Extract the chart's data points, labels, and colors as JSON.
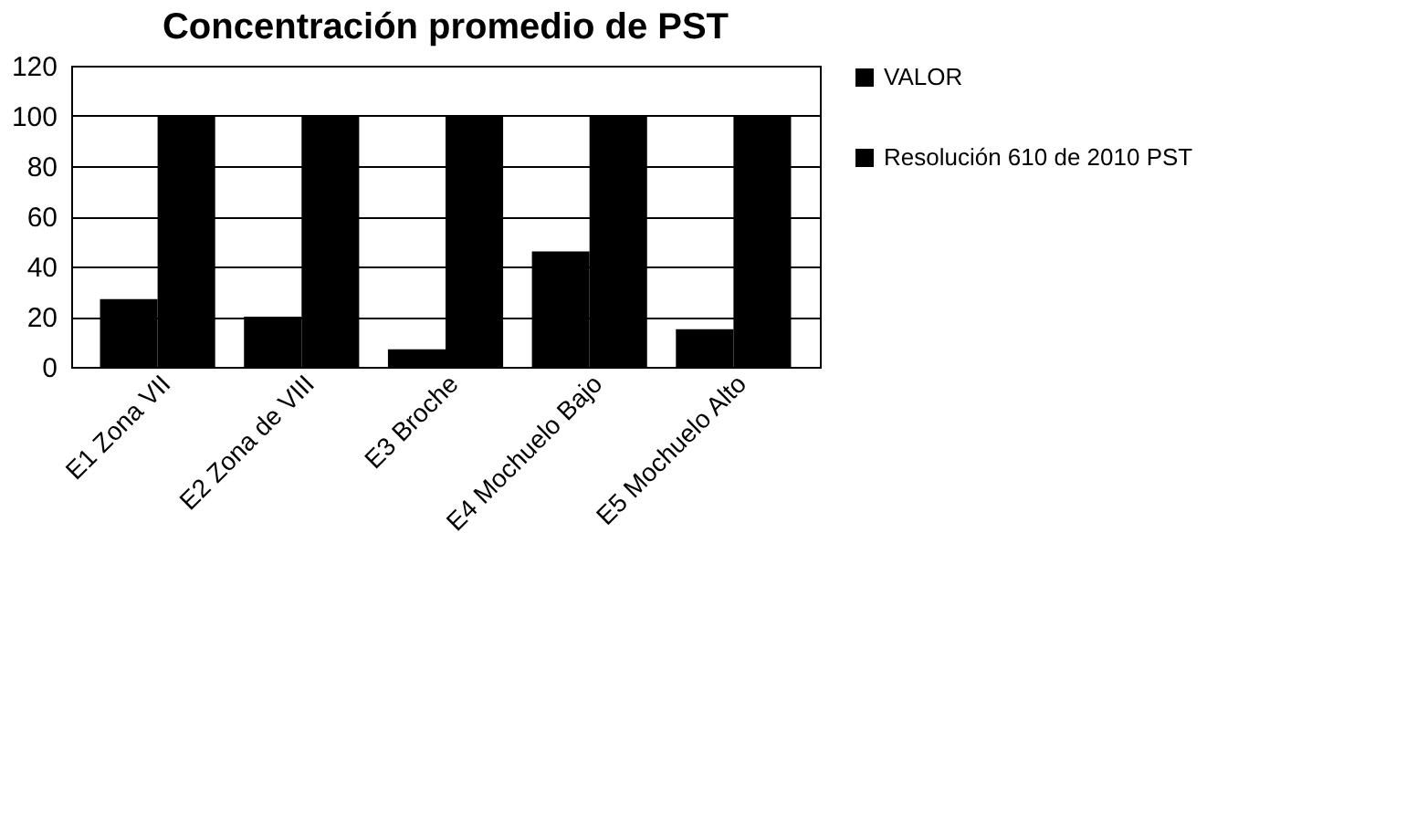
{
  "chart_data": {
    "type": "bar",
    "title": "Concentración promedio de PST",
    "categories": [
      "E1 Zona VII",
      "E2 Zona de VIII",
      "E3 Broche",
      "E4 Mochuelo Bajo",
      "E5 Mochuelo Alto"
    ],
    "series": [
      {
        "name": "VALOR",
        "color": "#000000",
        "values": [
          27,
          20,
          7,
          46,
          15
        ]
      },
      {
        "name": "Resolución 610 de 2010 PST",
        "color": "#000000",
        "values": [
          100,
          100,
          100,
          100,
          100
        ]
      }
    ],
    "ylim": [
      0,
      120
    ],
    "yticks": [
      0,
      20,
      40,
      60,
      80,
      100,
      120
    ],
    "grid": "y",
    "legend": "right"
  }
}
